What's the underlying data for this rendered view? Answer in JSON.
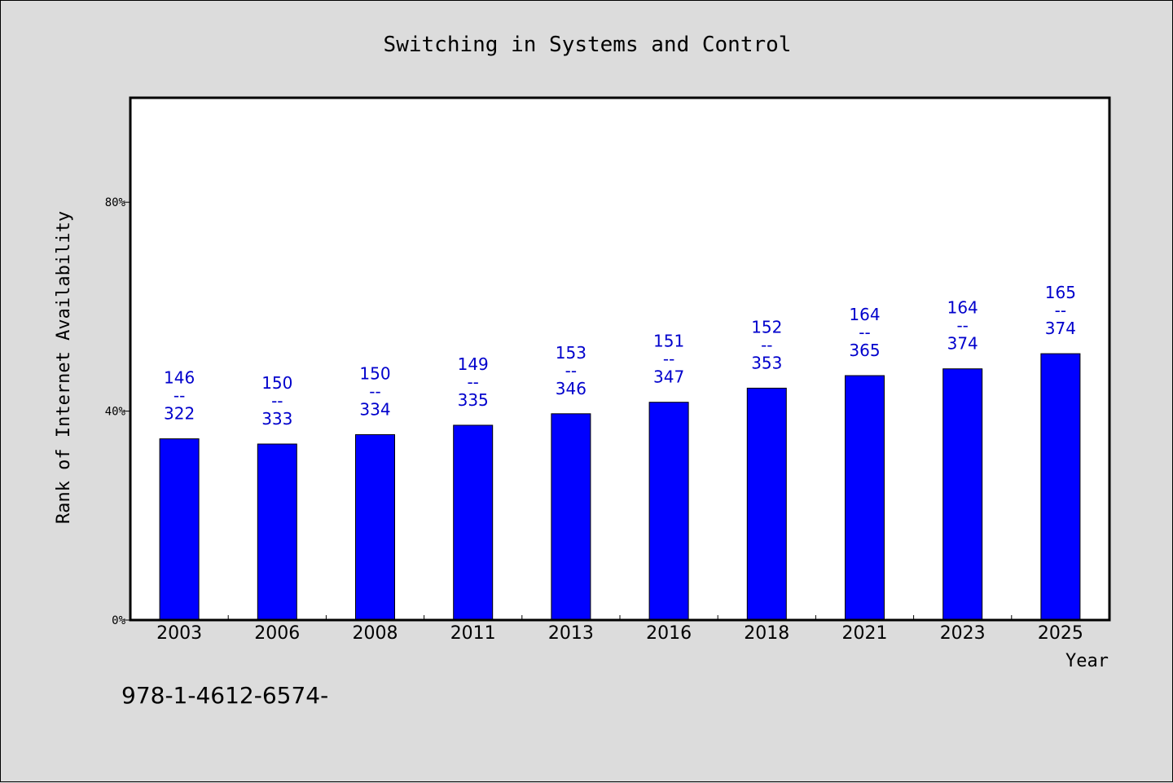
{
  "chart_data": {
    "type": "bar",
    "title": "Switching in Systems and Control",
    "xlabel": "Year",
    "ylabel": "Rank of Internet Availability",
    "categories": [
      "2003",
      "2006",
      "2008",
      "2011",
      "2013",
      "2016",
      "2018",
      "2021",
      "2023",
      "2025"
    ],
    "values": [
      34.7,
      33.7,
      35.5,
      37.3,
      39.5,
      41.7,
      44.4,
      46.8,
      48.1,
      51.0
    ],
    "data_labels": [
      {
        "top": "146",
        "sep": "--",
        "bottom": "322"
      },
      {
        "top": "150",
        "sep": "--",
        "bottom": "333"
      },
      {
        "top": "150",
        "sep": "--",
        "bottom": "334"
      },
      {
        "top": "149",
        "sep": "--",
        "bottom": "335"
      },
      {
        "top": "153",
        "sep": "--",
        "bottom": "346"
      },
      {
        "top": "151",
        "sep": "--",
        "bottom": "347"
      },
      {
        "top": "152",
        "sep": "--",
        "bottom": "353"
      },
      {
        "top": "164",
        "sep": "--",
        "bottom": "365"
      },
      {
        "top": "164",
        "sep": "--",
        "bottom": "374"
      },
      {
        "top": "165",
        "sep": "--",
        "bottom": "374"
      }
    ],
    "yticks": [
      0,
      40,
      80
    ],
    "ytick_labels": [
      "0%",
      "40%",
      "80%"
    ],
    "ylim": [
      0,
      100
    ],
    "grid": false,
    "legend": "none",
    "bar_color": "#0000ff",
    "label_color": "#0000cc",
    "background_color": "#dcdcdc",
    "plot_background_color": "#ffffff"
  },
  "footer": {
    "text": "978-1-4612-6574-"
  }
}
